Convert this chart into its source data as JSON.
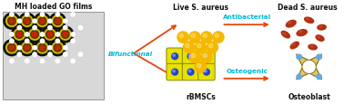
{
  "bg_color": "#ffffff",
  "arrow_color": "#e8450a",
  "cyan_color": "#00b8d4",
  "black_color": "#111111",
  "bifunctional_label": "Bifunctional",
  "antibacterial_label": "Antibacterial",
  "osteogenic_label": "Osteogenic",
  "live_aureus_label": "Live S. aureus",
  "dead_aureus_label": "Dead S. aureus",
  "rbmscs_label": "rBMSCs",
  "osteoblast_label": "Osteoblast",
  "go_film_title": "MH loaded GO films",
  "go_sphere_color": "#f5b800",
  "go_sphere_highlight": "#ffe066",
  "dead_color": "#b03010",
  "dead_highlight": "#d06040",
  "rbmsc_fill": "#e8e000",
  "rbmsc_border": "#888800",
  "rbmsc_dot": "#2244cc",
  "ost_fill": "#ddc870",
  "ost_border": "#886600",
  "ost_dot": "#66aadd",
  "film_bg": "#d8d8d8",
  "film_border": "#888888",
  "go_black": "#111111",
  "go_yellow": "#d4b800",
  "go_dark": "#444400",
  "go_red": "#cc2200",
  "go_white": "#ffffff"
}
